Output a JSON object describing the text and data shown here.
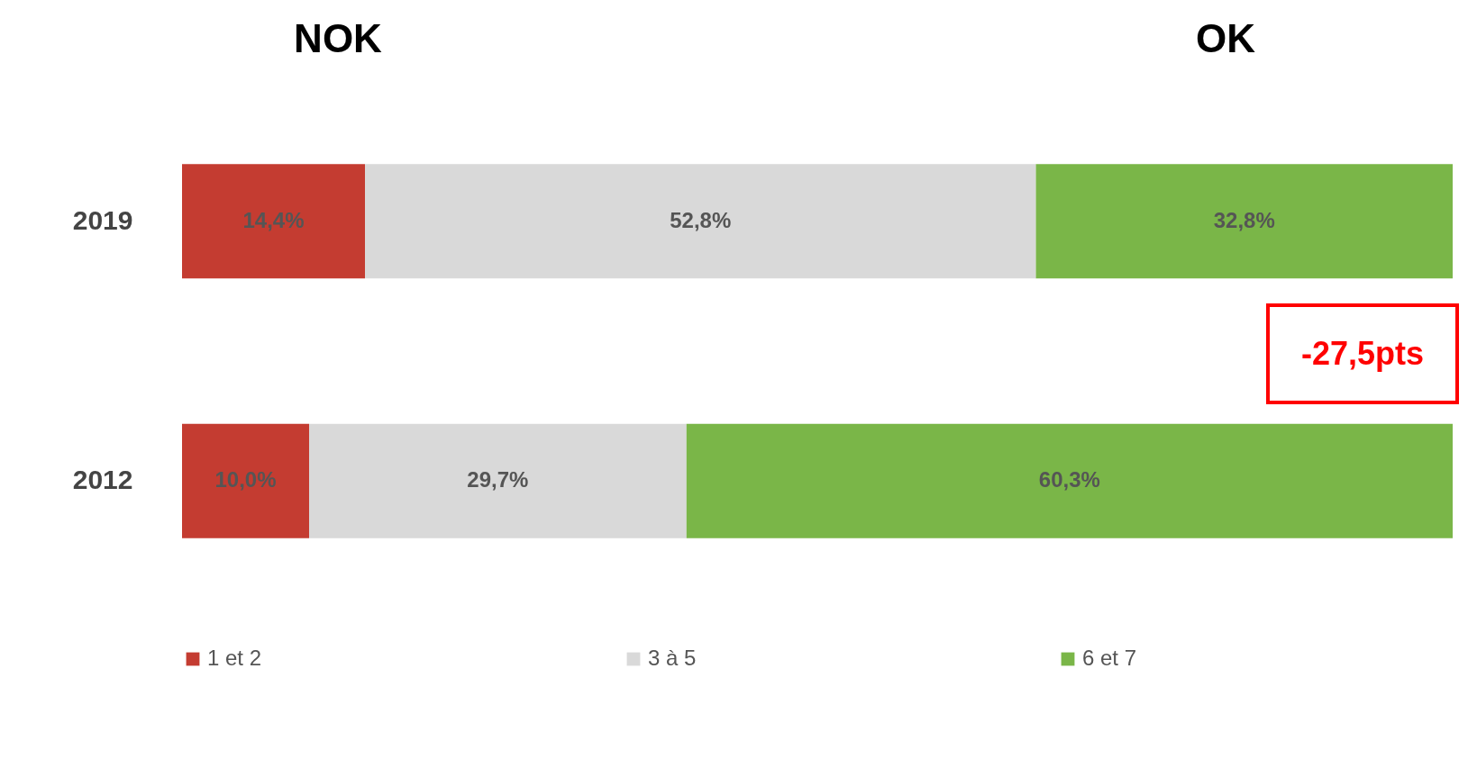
{
  "chart_data": {
    "type": "bar",
    "orientation": "horizontal",
    "stacked": true,
    "categories": [
      "2019",
      "2012"
    ],
    "series": [
      {
        "name": "1 et 2",
        "color": "#c43c31",
        "values": [
          14.4,
          10.0
        ],
        "value_labels": [
          "14,4%",
          "10,0%"
        ]
      },
      {
        "name": "3 à 5",
        "color": "#d9d9d9",
        "values": [
          52.8,
          29.7
        ],
        "value_labels": [
          "52,8%",
          "29,7%"
        ]
      },
      {
        "name": "6 et 7",
        "color": "#7ab648",
        "values": [
          32.8,
          60.3
        ],
        "value_labels": [
          "32,8%",
          "60,3%"
        ]
      }
    ],
    "annotations": [
      "NOK",
      "OK",
      "-27,5pts"
    ],
    "legend": "bottom"
  }
}
